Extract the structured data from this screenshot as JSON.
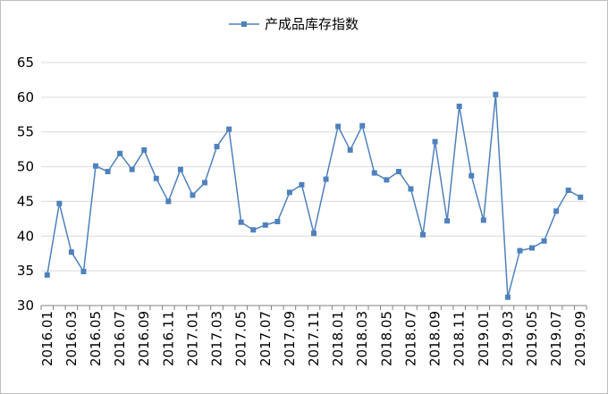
{
  "chart_data": {
    "type": "line",
    "title": "",
    "xlabel": "",
    "ylabel": "",
    "ylim": [
      30,
      65
    ],
    "yticks": [
      30,
      35,
      40,
      45,
      50,
      55,
      60,
      65
    ],
    "grid": "horizontal",
    "legend_position": "top-center",
    "colors": {
      "series": "#4f81bd",
      "grid": "#d9d9d9",
      "axis": "#000000"
    },
    "x": [
      "2016.01",
      "2016.02",
      "2016.03",
      "2016.04",
      "2016.05",
      "2016.06",
      "2016.07",
      "2016.08",
      "2016.09",
      "2016.10",
      "2016.11",
      "2016.12",
      "2017.01",
      "2017.02",
      "2017.03",
      "2017.04",
      "2017.05",
      "2017.06",
      "2017.07",
      "2017.08",
      "2017.09",
      "2017.10",
      "2017.11",
      "2017.12",
      "2018.01",
      "2018.02",
      "2018.03",
      "2018.04",
      "2018.05",
      "2018.06",
      "2018.07",
      "2018.08",
      "2018.09",
      "2018.10",
      "2018.11",
      "2018.12",
      "2019.01",
      "2019.02",
      "2019.03",
      "2019.04",
      "2019.05",
      "2019.06",
      "2019.07",
      "2019.08",
      "2019.09"
    ],
    "xtick_labels": [
      "2016.01",
      "2016.03",
      "2016.05",
      "2016.07",
      "2016.09",
      "2016.11",
      "2017.01",
      "2017.03",
      "2017.05",
      "2017.07",
      "2017.09",
      "2017.11",
      "2018.01",
      "2018.03",
      "2018.05",
      "2018.07",
      "2018.09",
      "2018.11",
      "2019.01",
      "2019.03",
      "2019.05",
      "2019.07",
      "2019.09"
    ],
    "series": [
      {
        "name": "产成品库存指数",
        "values": [
          34.4,
          44.7,
          37.7,
          34.9,
          50.1,
          49.3,
          51.9,
          49.6,
          52.4,
          48.3,
          45.0,
          49.6,
          45.9,
          47.7,
          52.9,
          55.4,
          42.0,
          40.9,
          41.6,
          42.1,
          46.3,
          47.4,
          40.4,
          48.2,
          55.8,
          52.4,
          55.9,
          49.1,
          48.1,
          49.3,
          46.8,
          40.2,
          53.6,
          42.2,
          58.7,
          48.7,
          42.3,
          60.4,
          31.2,
          37.9,
          38.3,
          39.3,
          43.6,
          46.6,
          45.6
        ]
      }
    ]
  }
}
